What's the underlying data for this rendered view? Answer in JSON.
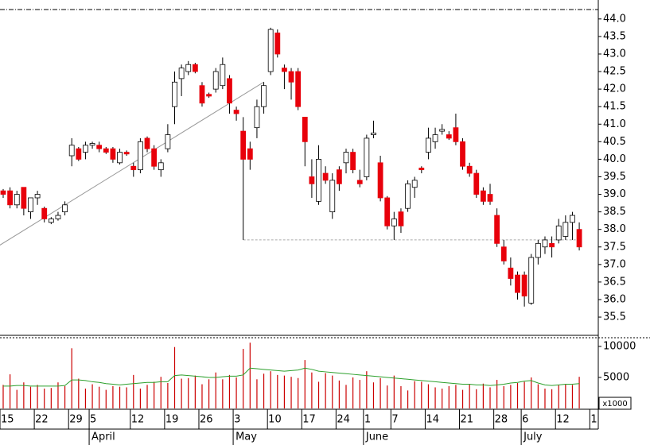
{
  "chart_data": {
    "type": "candlestick",
    "open": [
      39.1,
      39.1,
      38.7,
      39.2,
      38.5,
      38.9,
      38.6,
      38.2,
      38.3,
      38.5,
      40.1,
      40.3,
      40.2,
      40.4,
      40.4,
      40.3,
      40.3,
      39.9,
      40.2,
      39.8,
      39.7,
      40.6,
      40.3,
      39.7,
      40.3,
      41.5,
      42.3,
      42.5,
      42.7,
      42.1,
      41.85,
      42.0,
      42.1,
      42.3,
      41.4,
      40.8,
      40.3,
      40.9,
      41.5,
      42.5,
      43.6,
      42.6,
      42.5,
      42.5,
      41.2,
      39.5,
      38.8,
      39.6,
      38.5,
      39.7,
      39.9,
      40.2,
      39.4,
      39.5,
      40.7,
      39.9,
      38.9,
      38.1,
      38.5,
      38.6,
      39.2,
      39.75,
      40.2,
      40.5,
      40.8,
      40.7,
      40.9,
      40.5,
      39.8,
      39.6,
      39.1,
      39.0,
      38.4,
      37.5,
      36.9,
      36.7,
      36.7,
      35.9,
      37.2,
      37.5,
      37.6,
      37.7,
      37.8,
      38.2,
      38.0
    ],
    "high": [
      39.15,
      39.2,
      39.1,
      39.2,
      38.9,
      39.1,
      38.65,
      38.35,
      38.5,
      38.8,
      40.6,
      40.35,
      40.5,
      40.5,
      40.5,
      40.35,
      40.35,
      40.3,
      40.25,
      39.9,
      40.6,
      40.65,
      40.4,
      40.0,
      41.0,
      42.5,
      42.7,
      42.8,
      42.75,
      42.2,
      41.9,
      42.6,
      42.9,
      42.4,
      41.5,
      41.2,
      40.5,
      41.7,
      42.2,
      43.75,
      43.7,
      42.7,
      42.6,
      42.6,
      41.2,
      40.0,
      40.4,
      39.8,
      39.6,
      39.8,
      40.3,
      40.3,
      39.7,
      40.7,
      41.1,
      40.1,
      38.95,
      38.5,
      38.6,
      39.4,
      39.5,
      39.8,
      40.9,
      40.9,
      41.0,
      40.8,
      41.3,
      40.6,
      39.9,
      39.7,
      39.2,
      39.3,
      38.6,
      37.7,
      37.2,
      36.8,
      36.8,
      37.3,
      37.7,
      37.8,
      37.8,
      38.3,
      38.4,
      38.5,
      38.2
    ],
    "low": [
      38.9,
      38.6,
      38.6,
      38.4,
      38.3,
      38.7,
      38.2,
      38.15,
      38.25,
      38.4,
      39.8,
      39.95,
      40.0,
      40.3,
      40.2,
      40.15,
      39.9,
      39.85,
      40.1,
      39.5,
      39.6,
      40.2,
      39.7,
      39.5,
      40.2,
      41.0,
      41.8,
      42.4,
      42.45,
      41.5,
      41.75,
      41.9,
      42.0,
      41.3,
      41.1,
      37.7,
      39.7,
      40.6,
      41.3,
      42.4,
      42.9,
      42.0,
      41.7,
      41.4,
      39.8,
      38.9,
      38.7,
      39.3,
      38.3,
      39.1,
      39.6,
      39.6,
      39.2,
      39.4,
      40.6,
      38.8,
      38.0,
      37.7,
      37.9,
      38.5,
      38.9,
      39.6,
      40.0,
      40.3,
      40.7,
      40.55,
      40.4,
      39.7,
      39.5,
      38.9,
      38.7,
      38.7,
      37.5,
      37.0,
      36.4,
      36.0,
      35.8,
      35.85,
      37.0,
      37.3,
      37.2,
      37.6,
      37.7,
      37.7,
      37.4
    ],
    "close": [
      39.0,
      38.7,
      39.0,
      38.6,
      38.9,
      39.0,
      38.3,
      38.3,
      38.4,
      38.7,
      40.4,
      40.0,
      40.4,
      40.45,
      40.3,
      40.2,
      40.0,
      40.2,
      40.15,
      39.7,
      40.5,
      40.3,
      39.8,
      39.9,
      40.7,
      42.2,
      42.6,
      42.7,
      42.5,
      41.6,
      41.8,
      42.5,
      42.7,
      41.6,
      41.3,
      40.0,
      40.0,
      41.5,
      42.1,
      43.7,
      43.0,
      42.5,
      42.2,
      41.5,
      40.5,
      39.3,
      40.0,
      39.4,
      39.4,
      39.3,
      40.2,
      39.7,
      39.3,
      40.6,
      40.75,
      38.9,
      38.1,
      38.3,
      38.1,
      39.3,
      39.4,
      39.7,
      40.6,
      40.7,
      40.85,
      40.6,
      40.5,
      39.8,
      39.6,
      39.0,
      38.8,
      38.8,
      37.6,
      37.1,
      36.6,
      36.2,
      36.1,
      37.2,
      37.6,
      37.7,
      37.5,
      38.1,
      38.2,
      38.4,
      37.5
    ],
    "volume": [
      3800,
      5500,
      3000,
      4200,
      3500,
      3800,
      3200,
      3300,
      4200,
      3600,
      9700,
      4800,
      3200,
      3900,
      3500,
      3000,
      3600,
      3500,
      3400,
      5400,
      3200,
      3800,
      4300,
      5100,
      4100,
      9900,
      4800,
      4900,
      5300,
      3900,
      4700,
      5800,
      4700,
      5400,
      5000,
      9600,
      10600,
      4700,
      5600,
      6000,
      5400,
      5300,
      5100,
      4900,
      7800,
      5800,
      4300,
      5700,
      5300,
      4500,
      3800,
      5000,
      4600,
      6000,
      4200,
      4900,
      3700,
      5300,
      3600,
      2900,
      4400,
      4300,
      3900,
      3400,
      3200,
      3600,
      3800,
      3000,
      3900,
      3100,
      4000,
      3400,
      4600,
      3600,
      3800,
      4100,
      4300,
      5000,
      3900,
      3200,
      3100,
      3800,
      3900,
      3800,
      5100
    ],
    "volume_average": [
      3600,
      3600,
      3700,
      3700,
      3600,
      3600,
      3600,
      3600,
      3600,
      3700,
      4600,
      4600,
      4500,
      4300,
      4200,
      4000,
      3900,
      3800,
      3900,
      4000,
      4100,
      4200,
      4200,
      4300,
      4300,
      5300,
      5400,
      5300,
      5200,
      5100,
      5000,
      5000,
      5100,
      5200,
      5200,
      5400,
      6500,
      6400,
      6300,
      6200,
      6100,
      6000,
      6100,
      6200,
      6500,
      6300,
      6000,
      5900,
      5800,
      5700,
      5600,
      5500,
      5400,
      5300,
      5200,
      5100,
      5000,
      4900,
      4800,
      4700,
      4600,
      4500,
      4400,
      4300,
      4200,
      4100,
      4000,
      3900,
      3900,
      3800,
      3800,
      3700,
      3800,
      3900,
      4100,
      4200,
      4400,
      4500,
      4100,
      3800,
      3700,
      3800,
      3900,
      3900,
      4000
    ],
    "up_color": "#ffffff",
    "down_color": "#e8000b",
    "volume_color": "#cc0000",
    "average_color": "#2ca02c",
    "ylim": [
      34.98,
      44.54
    ],
    "yticks": [
      35.5,
      {
        "value": 36,
        "label": "36.0"
      },
      36.5,
      {
        "value": 37,
        "label": "37.0"
      },
      37.5,
      {
        "value": 38,
        "label": "38.0"
      },
      38.5,
      {
        "value": 39,
        "label": "39.0"
      },
      39.5,
      {
        "value": 40,
        "label": "40.0"
      },
      40.5,
      {
        "value": 41,
        "label": "41.0"
      },
      41.5,
      {
        "value": 42,
        "label": "42.0"
      },
      42.5,
      {
        "value": 43,
        "label": "43.0"
      },
      43.5,
      {
        "value": 44,
        "label": "44.0"
      }
    ],
    "volume_ylim": [
      0,
      11400
    ],
    "volume_ticks": [
      {
        "value": 10000,
        "label": "10000"
      },
      {
        "value": 5000,
        "label": "5000"
      }
    ],
    "volume_unit": "x1000",
    "xticks": [
      {
        "value": 0,
        "label": "15"
      },
      {
        "value": 5,
        "label": "22"
      },
      {
        "value": 10,
        "label": "29"
      },
      {
        "value": 13,
        "label": "5"
      },
      {
        "value": 19,
        "label": "12"
      },
      {
        "value": 24,
        "label": "19"
      },
      {
        "value": 29,
        "label": "26"
      },
      {
        "value": 34,
        "label": "3"
      },
      {
        "value": 39,
        "label": "10"
      },
      {
        "value": 44,
        "label": "17"
      },
      {
        "value": 49,
        "label": "24"
      },
      {
        "value": 53,
        "label": "1"
      },
      {
        "value": 57,
        "label": "7"
      },
      {
        "value": 62,
        "label": "14"
      },
      {
        "value": 67,
        "label": "21"
      },
      {
        "value": 72,
        "label": "28"
      },
      {
        "value": 76,
        "label": "6"
      },
      {
        "value": 81,
        "label": "12"
      },
      {
        "value": 86,
        "label": "1"
      }
    ],
    "months": [
      {
        "value": 13,
        "label": "April"
      },
      {
        "value": 34,
        "label": "May"
      },
      {
        "value": 53,
        "label": "June"
      },
      {
        "value": 76,
        "label": "July"
      }
    ],
    "trendline": {
      "x": [
        -0.5,
        38
      ],
      "y": [
        37.55,
        42.2
      ]
    },
    "support_line": {
      "x": [
        35,
        84
      ],
      "y": [
        37.7,
        37.7
      ]
    }
  }
}
